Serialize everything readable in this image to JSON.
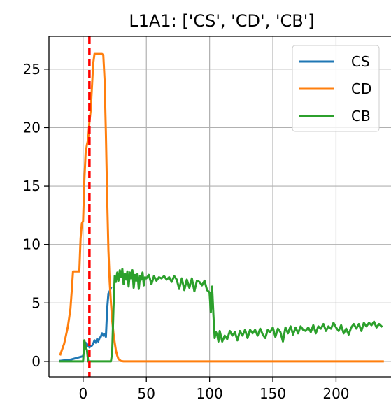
{
  "chart_data": {
    "type": "line",
    "title": "L1A1: ['CS', 'CD', 'CB']",
    "xlabel": "",
    "ylabel": "",
    "xlim": [
      -27,
      244
    ],
    "ylim": [
      -1.32,
      27.8
    ],
    "xticks": [
      0,
      50,
      100,
      150,
      200
    ],
    "yticks": [
      0,
      5,
      10,
      15,
      20,
      25
    ],
    "grid": true,
    "legend_position": "top-right",
    "vline": {
      "x": 5,
      "color": "#ff0000",
      "style": "dashed"
    },
    "series": [
      {
        "name": "CS",
        "color": "#1f77b4",
        "x": [
          -18,
          -10,
          -5,
          0,
          2,
          3,
          4,
          5,
          6,
          7,
          8,
          9,
          10,
          11,
          12,
          13,
          14,
          15,
          16,
          17,
          18,
          19,
          20,
          21,
          22
        ],
        "y": [
          0.05,
          0.15,
          0.3,
          0.45,
          1.6,
          1.3,
          1.45,
          1.2,
          1.3,
          1.35,
          1.5,
          1.8,
          1.6,
          1.9,
          1.7,
          2.0,
          2.1,
          2.4,
          2.2,
          2.3,
          2.1,
          4.5,
          5.8,
          6.0,
          6.3
        ]
      },
      {
        "name": "CD",
        "color": "#ff7f0e",
        "x": [
          -18,
          -15,
          -12,
          -10,
          -9,
          -8,
          -7,
          -6,
          -5,
          -4,
          -3,
          -2,
          -1,
          0,
          1,
          2,
          3,
          4,
          5,
          6,
          7,
          8,
          9,
          10,
          11,
          12,
          13,
          14,
          15,
          16,
          17,
          18,
          19,
          20,
          21,
          22,
          23,
          24,
          25,
          26,
          27,
          28,
          30,
          32,
          35,
          40,
          60,
          100,
          150,
          200,
          237
        ],
        "y": [
          0.6,
          1.5,
          3.0,
          4.5,
          6.0,
          7.7,
          7.7,
          7.7,
          7.7,
          7.7,
          7.7,
          10.5,
          11.8,
          12.0,
          15.5,
          17.8,
          18.5,
          19.0,
          20.5,
          21.5,
          23.5,
          25.5,
          26.3,
          26.3,
          26.3,
          26.3,
          26.3,
          26.3,
          26.3,
          26.2,
          24.0,
          19.5,
          14.0,
          9.5,
          6.8,
          5.0,
          3.5,
          2.4,
          1.6,
          0.9,
          0.5,
          0.2,
          0.03,
          0.0,
          0.0,
          0.0,
          0.0,
          0.0,
          0.0,
          0.0,
          0.0
        ]
      },
      {
        "name": "CB",
        "color": "#2ca02c",
        "x": [
          -18,
          -15,
          -10,
          -5,
          -2,
          0,
          1,
          2,
          3,
          4,
          5,
          6,
          7,
          8,
          9,
          10,
          12,
          14,
          16,
          18,
          20,
          22,
          23,
          24,
          25,
          26,
          27,
          28,
          29,
          30,
          31,
          32,
          33,
          34,
          35,
          36,
          37,
          38,
          39,
          40,
          41,
          42,
          43,
          44,
          45,
          46,
          47,
          48,
          49,
          50,
          52,
          54,
          56,
          58,
          60,
          62,
          64,
          66,
          68,
          70,
          72,
          74,
          76,
          78,
          80,
          82,
          84,
          86,
          88,
          90,
          92,
          94,
          96,
          98,
          100,
          101,
          102,
          103,
          104,
          105,
          106,
          107,
          108,
          110,
          112,
          114,
          116,
          118,
          120,
          122,
          124,
          126,
          128,
          130,
          132,
          134,
          136,
          138,
          140,
          142,
          144,
          146,
          148,
          150,
          152,
          154,
          156,
          158,
          160,
          162,
          164,
          166,
          168,
          170,
          172,
          174,
          176,
          178,
          180,
          182,
          184,
          186,
          188,
          190,
          192,
          194,
          196,
          198,
          200,
          202,
          204,
          206,
          208,
          210,
          212,
          214,
          216,
          218,
          220,
          222,
          224,
          226,
          228,
          230,
          232,
          234,
          236
        ],
        "y": [
          0.0,
          0.0,
          0.0,
          0.0,
          0.0,
          0.0,
          1.8,
          1.2,
          1.0,
          0.0,
          0.0,
          0.0,
          0.0,
          0.0,
          0.0,
          0.0,
          0.0,
          0.0,
          0.0,
          0.0,
          0.0,
          0.0,
          0.8,
          4.5,
          7.3,
          6.8,
          7.6,
          6.9,
          7.8,
          7.2,
          7.9,
          6.6,
          7.5,
          7.0,
          7.7,
          6.4,
          7.6,
          7.1,
          7.8,
          6.3,
          7.4,
          6.9,
          7.5,
          6.2,
          7.3,
          7.0,
          7.6,
          6.5,
          7.2,
          7.1,
          7.4,
          6.6,
          7.3,
          6.9,
          7.2,
          7.1,
          7.3,
          7.0,
          7.2,
          6.8,
          7.3,
          7.0,
          6.2,
          7.1,
          6.1,
          7.0,
          6.3,
          7.1,
          6.0,
          6.9,
          6.8,
          6.5,
          6.9,
          6.1,
          5.9,
          4.2,
          6.4,
          4.0,
          2.0,
          2.5,
          2.3,
          1.7,
          2.6,
          1.7,
          2.2,
          1.9,
          2.6,
          2.2,
          2.5,
          1.8,
          2.6,
          2.2,
          2.7,
          2.0,
          2.7,
          2.4,
          2.7,
          2.2,
          2.8,
          2.3,
          2.0,
          2.7,
          2.5,
          2.9,
          2.1,
          2.8,
          2.5,
          1.7,
          2.9,
          2.4,
          3.0,
          2.3,
          2.9,
          2.4,
          3.0,
          2.7,
          2.6,
          2.9,
          2.5,
          3.1,
          2.4,
          3.0,
          2.8,
          3.2,
          2.6,
          3.0,
          2.8,
          3.3,
          2.9,
          2.6,
          3.1,
          2.4,
          2.8,
          2.3,
          2.9,
          3.2,
          2.8,
          3.2,
          2.6,
          3.3,
          3.0,
          3.3,
          3.1,
          3.4,
          2.9,
          3.2,
          3.0
        ]
      }
    ]
  }
}
